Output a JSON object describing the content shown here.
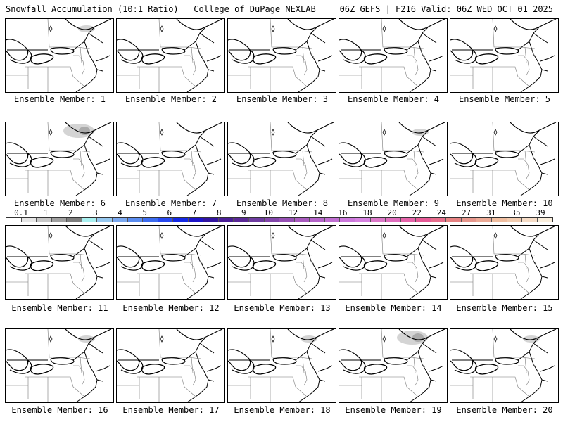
{
  "header": {
    "left": "Snowfall Accumulation (10:1 Ratio) | College of DuPage NEXLAB",
    "right": "06Z GEFS | F216 Valid: 06Z WED OCT 01 2025"
  },
  "map": {
    "region": "Northeast United States and southeastern Canada",
    "panels": [
      {
        "label": "Ensemble Member: 1",
        "snow": "faint"
      },
      {
        "label": "Ensemble Member: 2",
        "snow": "none"
      },
      {
        "label": "Ensemble Member: 3",
        "snow": "none"
      },
      {
        "label": "Ensemble Member: 4",
        "snow": "none"
      },
      {
        "label": "Ensemble Member: 5",
        "snow": "none"
      },
      {
        "label": "Ensemble Member: 6",
        "snow": "moderate"
      },
      {
        "label": "Ensemble Member: 7",
        "snow": "none"
      },
      {
        "label": "Ensemble Member: 8",
        "snow": "none"
      },
      {
        "label": "Ensemble Member: 9",
        "snow": "faint"
      },
      {
        "label": "Ensemble Member: 10",
        "snow": "none"
      },
      {
        "label": "Ensemble Member: 11",
        "snow": "none"
      },
      {
        "label": "Ensemble Member: 12",
        "snow": "none"
      },
      {
        "label": "Ensemble Member: 13",
        "snow": "none"
      },
      {
        "label": "Ensemble Member: 14",
        "snow": "none"
      },
      {
        "label": "Ensemble Member: 15",
        "snow": "none"
      },
      {
        "label": "Ensemble Member: 16",
        "snow": "faint"
      },
      {
        "label": "Ensemble Member: 17",
        "snow": "none"
      },
      {
        "label": "Ensemble Member: 18",
        "snow": "faint"
      },
      {
        "label": "Ensemble Member: 19",
        "snow": "moderate"
      },
      {
        "label": "Ensemble Member: 20",
        "snow": "faint"
      }
    ]
  },
  "colorbar": {
    "ticks": [
      "0.1",
      "1",
      "2",
      "3",
      "4",
      "5",
      "6",
      "7",
      "8",
      "9",
      "10",
      "12",
      "14",
      "16",
      "18",
      "20",
      "22",
      "24",
      "27",
      "31",
      "35",
      "39"
    ],
    "colors": [
      "#ffffff",
      "#e6e6e6",
      "#c8c8c8",
      "#a0a0a0",
      "#7e7e7e",
      "#a8f0f0",
      "#96c8f0",
      "#7aa8f0",
      "#5a8cf0",
      "#3c6cf0",
      "#2848f0",
      "#1428e6",
      "#1e14c8",
      "#3214a0",
      "#4a1e96",
      "#5a2896",
      "#6e3ca0",
      "#8246aa",
      "#9650b4",
      "#a85abe",
      "#b464c8",
      "#c06ed2",
      "#cc78dc",
      "#d682e0",
      "#dc78c8",
      "#e06ebe",
      "#e664aa",
      "#e65a96",
      "#e66e8c",
      "#e68282",
      "#e6968c",
      "#ecaa96",
      "#f0bea0",
      "#f2ccb0",
      "#f6dcc6",
      "#faeedc"
    ]
  },
  "colors": {
    "border": "#000000",
    "state_lines": "#777777",
    "snow_light": "#d4d4d4",
    "snow_mid": "#aaaaaa"
  }
}
